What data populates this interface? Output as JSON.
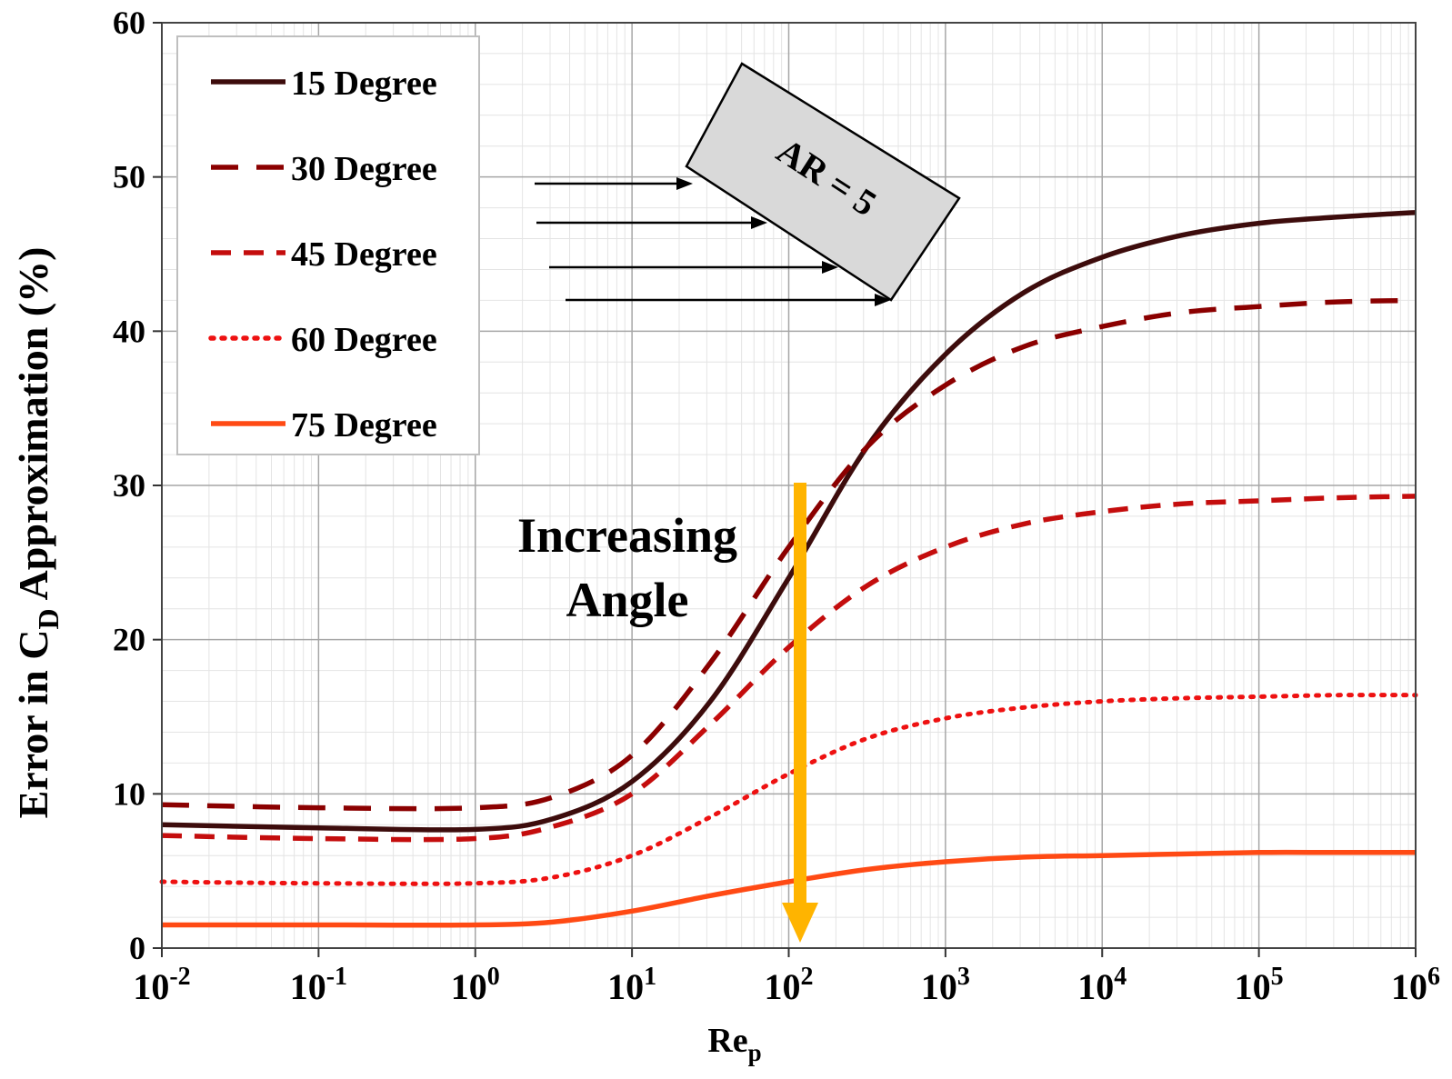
{
  "chart_data": {
    "type": "line",
    "x_scale": "log",
    "xlabel": "Re",
    "xlabel_sub": "p",
    "ylabel_parts": [
      "Error in C",
      "D",
      "  Approximation (%)"
    ],
    "xlim_exp": [
      -2,
      6
    ],
    "ylim": [
      0,
      60
    ],
    "y_ticks": [
      0,
      10,
      20,
      30,
      40,
      50,
      60
    ],
    "x_ticks": [
      {
        "exp": -2,
        "base": "10",
        "sup": "-2"
      },
      {
        "exp": -1,
        "base": "10",
        "sup": "-1"
      },
      {
        "exp": 0,
        "base": "10",
        "sup": "0"
      },
      {
        "exp": 1,
        "base": "10",
        "sup": "1"
      },
      {
        "exp": 2,
        "base": "10",
        "sup": "2"
      },
      {
        "exp": 3,
        "base": "10",
        "sup": "3"
      },
      {
        "exp": 4,
        "base": "10",
        "sup": "4"
      },
      {
        "exp": 5,
        "base": "10",
        "sup": "5"
      },
      {
        "exp": 6,
        "base": "10",
        "sup": "6"
      }
    ],
    "grid": true,
    "legend_position": "top-left",
    "series": [
      {
        "name": "15 Degree",
        "color": "#3d0c0c",
        "style": "solid",
        "log10_re": [
          -2,
          -1,
          0,
          0.5,
          1,
          1.5,
          2,
          2.5,
          3,
          3.5,
          4,
          4.5,
          5,
          5.5,
          6
        ],
        "values": [
          8.0,
          7.8,
          7.7,
          8.4,
          10.8,
          16.0,
          24.0,
          32.5,
          38.5,
          42.5,
          44.8,
          46.2,
          47.0,
          47.4,
          47.7
        ]
      },
      {
        "name": "30 Degree",
        "color": "#8b0000",
        "style": "longdash",
        "log10_re": [
          -2,
          -1,
          0,
          0.5,
          1,
          1.5,
          2,
          2.5,
          3,
          3.5,
          4,
          4.5,
          5,
          5.5,
          6
        ],
        "values": [
          9.3,
          9.1,
          9.1,
          9.8,
          12.5,
          18.5,
          26.0,
          32.5,
          36.5,
          39.0,
          40.3,
          41.2,
          41.6,
          41.9,
          42.0
        ]
      },
      {
        "name": "45 Degree",
        "color": "#c40d0d",
        "style": "dash",
        "log10_re": [
          -2,
          -1,
          0,
          0.5,
          1,
          1.5,
          2,
          2.5,
          3,
          3.5,
          4,
          4.5,
          5,
          5.5,
          6
        ],
        "values": [
          7.3,
          7.1,
          7.1,
          7.9,
          10.0,
          14.5,
          19.5,
          23.5,
          26.0,
          27.5,
          28.3,
          28.8,
          29.0,
          29.2,
          29.3
        ]
      },
      {
        "name": "60 Degree",
        "color": "#ee1111",
        "style": "dot",
        "log10_re": [
          -2,
          -1,
          0,
          0.5,
          1,
          1.5,
          2,
          2.5,
          3,
          3.5,
          4,
          4.5,
          5,
          5.5,
          6
        ],
        "values": [
          4.3,
          4.2,
          4.2,
          4.6,
          6.0,
          8.5,
          11.3,
          13.6,
          14.9,
          15.6,
          16.0,
          16.2,
          16.3,
          16.4,
          16.4
        ]
      },
      {
        "name": "75 Degree",
        "color": "#ff4a14",
        "style": "solid",
        "log10_re": [
          -2,
          -1,
          0,
          0.5,
          1,
          1.5,
          2,
          2.5,
          3,
          3.5,
          4,
          4.5,
          5,
          5.5,
          6
        ],
        "values": [
          1.5,
          1.5,
          1.5,
          1.7,
          2.4,
          3.4,
          4.3,
          5.1,
          5.6,
          5.9,
          6.0,
          6.1,
          6.2,
          6.2,
          6.2
        ]
      }
    ],
    "annotations": {
      "increasing_angle": [
        "Increasing",
        "Angle"
      ],
      "arrow_color": "#ffb400",
      "box_label": "AR = 5",
      "box_fill": "#d9d9d9"
    }
  }
}
